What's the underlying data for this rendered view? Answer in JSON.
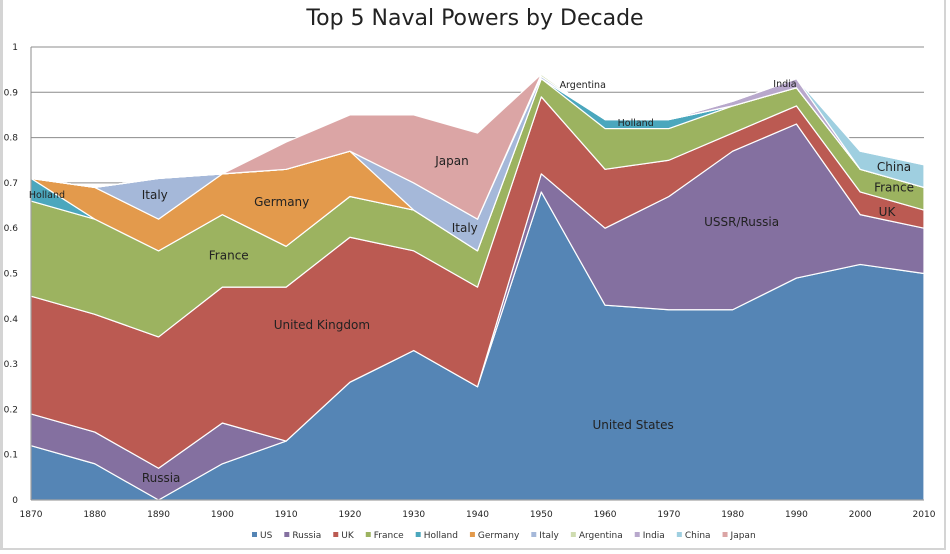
{
  "chart_data": {
    "type": "area",
    "stacked": true,
    "title": "Top 5 Naval Powers by Decade",
    "xlabel": "",
    "ylabel": "",
    "x": [
      1870,
      1880,
      1890,
      1900,
      1910,
      1920,
      1930,
      1940,
      1950,
      1960,
      1970,
      1980,
      1990,
      2000,
      2010
    ],
    "ylim": [
      0,
      1
    ],
    "yticks": [
      "0",
      "0.1",
      "0.2",
      "0.3",
      "0.4",
      "0.5",
      "0.6",
      "0.7",
      "0.8",
      "0.9",
      "1"
    ],
    "grid": true,
    "legend_position": "bottom",
    "series": [
      {
        "name": "US",
        "color": "#5585b5",
        "values": [
          0.12,
          0.08,
          0.0,
          0.08,
          0.13,
          0.26,
          0.33,
          0.25,
          0.68,
          0.43,
          0.42,
          0.42,
          0.49,
          0.52,
          0.5
        ]
      },
      {
        "name": "Russia",
        "color": "#8470a0",
        "values": [
          0.07,
          0.07,
          0.07,
          0.09,
          0,
          0,
          0,
          0,
          0.04,
          0.17,
          0.25,
          0.35,
          0.34,
          0.11,
          0.1
        ]
      },
      {
        "name": "UK",
        "color": "#bb5a52",
        "values": [
          0.26,
          0.26,
          0.29,
          0.3,
          0.34,
          0.32,
          0.22,
          0.22,
          0.17,
          0.13,
          0.08,
          0.04,
          0.04,
          0.05,
          0.04
        ]
      },
      {
        "name": "France",
        "color": "#9cb360",
        "values": [
          0.21,
          0.21,
          0.19,
          0.16,
          0.09,
          0.09,
          0.09,
          0.08,
          0.04,
          0.09,
          0.07,
          0.06,
          0.04,
          0.05,
          0.05
        ]
      },
      {
        "name": "Holland",
        "color": "#4ba7bd",
        "values": [
          0.05,
          0,
          0,
          0,
          0,
          0,
          0,
          0,
          0,
          0.02,
          0.02,
          0,
          0,
          0,
          0
        ]
      },
      {
        "name": "Germany",
        "color": "#e39a4c",
        "values": [
          0,
          0.07,
          0.07,
          0.09,
          0.17,
          0.1,
          0,
          0,
          0,
          0,
          0,
          0,
          0,
          0,
          0
        ]
      },
      {
        "name": "Italy",
        "color": "#a5b8d9",
        "values": [
          0,
          0,
          0.09,
          0,
          0,
          0,
          0.06,
          0.07,
          0.005,
          0,
          0,
          0,
          0,
          0,
          0
        ]
      },
      {
        "name": "Argentina",
        "color": "#cfdcb0",
        "values": [
          0,
          0,
          0,
          0,
          0,
          0,
          0,
          0,
          0.005,
          0,
          0,
          0,
          0,
          0,
          0
        ]
      },
      {
        "name": "India",
        "color": "#b8a8cc",
        "values": [
          0,
          0,
          0,
          0,
          0,
          0,
          0,
          0,
          0,
          0,
          0,
          0.01,
          0.02,
          0,
          0
        ]
      },
      {
        "name": "China",
        "color": "#9fcfe0",
        "values": [
          0,
          0,
          0,
          0,
          0,
          0,
          0,
          0,
          0,
          0,
          0,
          0,
          0,
          0.04,
          0.05
        ]
      },
      {
        "name": "Japan",
        "color": "#dba5a5",
        "values": [
          0,
          0,
          0,
          0,
          0.06,
          0.08,
          0.15,
          0.19,
          0,
          0,
          0,
          0,
          0,
          0,
          0
        ]
      }
    ],
    "annotations": [
      {
        "text": "Holland",
        "x": 1872.5,
        "y": 0.675,
        "small": true
      },
      {
        "text": "Italy",
        "x": 1889.4,
        "y": 0.673
      },
      {
        "text": "Germany",
        "x": 1909.3,
        "y": 0.658
      },
      {
        "text": "France",
        "x": 1901,
        "y": 0.54
      },
      {
        "text": "United Kingdom",
        "x": 1915.6,
        "y": 0.386
      },
      {
        "text": "Russia",
        "x": 1890.4,
        "y": 0.049
      },
      {
        "text": "Japan",
        "x": 1936,
        "y": 0.748
      },
      {
        "text": "Italy",
        "x": 1938,
        "y": 0.6
      },
      {
        "text": "Argentina",
        "x": 1956.5,
        "y": 0.918,
        "small": true
      },
      {
        "text": "Holland",
        "x": 1964.8,
        "y": 0.834,
        "small": true
      },
      {
        "text": "United States",
        "x": 1964.4,
        "y": 0.166
      },
      {
        "text": "USSR/Russia",
        "x": 1981.4,
        "y": 0.614
      },
      {
        "text": "India",
        "x": 1988.2,
        "y": 0.92,
        "small": true
      },
      {
        "text": "China",
        "x": 2005.3,
        "y": 0.735
      },
      {
        "text": "France",
        "x": 2005.3,
        "y": 0.69
      },
      {
        "text": "UK",
        "x": 2004.2,
        "y": 0.636
      }
    ]
  }
}
